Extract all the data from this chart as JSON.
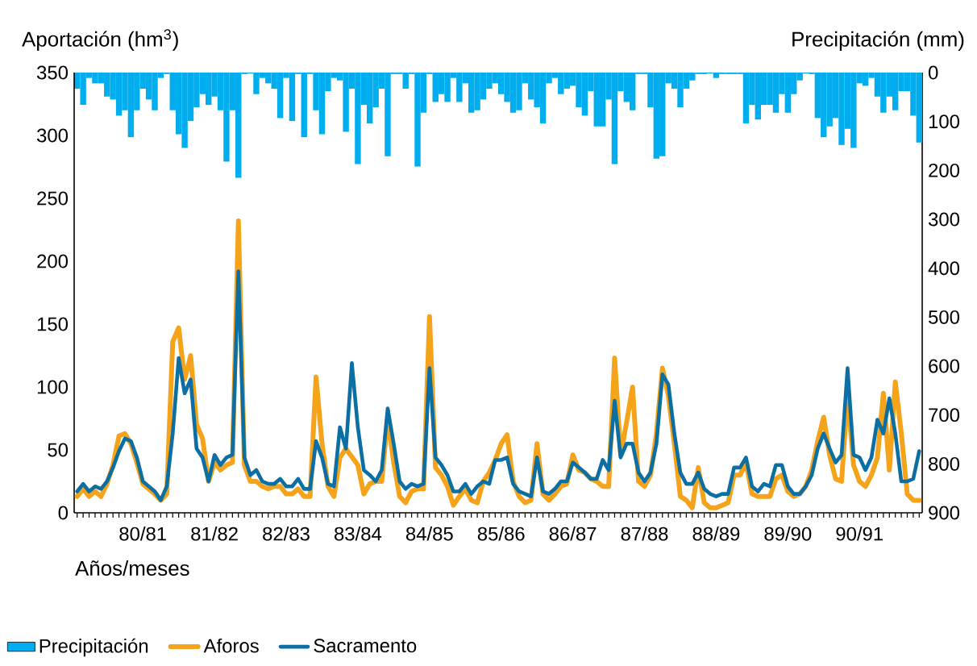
{
  "chart_data": {
    "type": "line",
    "xlabel": "Años/meses",
    "ylabel": "Aportación (hm$^{3}$)",
    "y2label": "Precipitación (mm)",
    "categories": [
      null,
      null,
      null,
      null,
      null,
      null,
      null,
      null,
      null,
      null,
      null,
      "80/81",
      null,
      null,
      null,
      null,
      null,
      null,
      null,
      null,
      null,
      null,
      null,
      "81/82",
      null,
      null,
      null,
      null,
      null,
      null,
      null,
      null,
      null,
      null,
      null,
      "82/83",
      null,
      null,
      null,
      null,
      null,
      null,
      null,
      null,
      null,
      null,
      null,
      "83/84",
      null,
      null,
      null,
      null,
      null,
      null,
      null,
      null,
      null,
      null,
      null,
      "84/85",
      null,
      null,
      null,
      null,
      null,
      null,
      null,
      null,
      null,
      null,
      null,
      "85/86",
      null,
      null,
      null,
      null,
      null,
      null,
      null,
      null,
      null,
      null,
      null,
      "86/87",
      null,
      null,
      null,
      null,
      null,
      null,
      null,
      null,
      null,
      null,
      null,
      "87/88",
      null,
      null,
      null,
      null,
      null,
      null,
      null,
      null,
      null,
      null,
      null,
      "88/89",
      null,
      null,
      null,
      null,
      null,
      null,
      null,
      null,
      null,
      null,
      null,
      "89/90",
      null,
      null,
      null,
      null,
      null,
      null,
      null,
      null,
      null,
      null,
      null,
      "90/91",
      null,
      null,
      null,
      null,
      null,
      null,
      null,
      null,
      null,
      null
    ],
    "series": [
      {
        "name": "Precipitación",
        "type": "bar",
        "axis": "y2",
        "color": "#00adef",
        "values": [
          33,
          66,
          11,
          22,
          22,
          49,
          55,
          88,
          77,
          132,
          77,
          33,
          55,
          77,
          11,
          3,
          77,
          126,
          154,
          99,
          71,
          44,
          66,
          49,
          77,
          182,
          77,
          215,
          3,
          2,
          44,
          11,
          22,
          33,
          93,
          11,
          99,
          3,
          132,
          3,
          77,
          126,
          38,
          11,
          16,
          121,
          33,
          187,
          66,
          104,
          71,
          33,
          171,
          3,
          3,
          33,
          3,
          192,
          82,
          3,
          60,
          44,
          60,
          11,
          60,
          22,
          82,
          77,
          55,
          33,
          22,
          44,
          60,
          82,
          77,
          22,
          55,
          71,
          104,
          22,
          11,
          44,
          33,
          27,
          71,
          88,
          38,
          110,
          110,
          55,
          187,
          38,
          60,
          77,
          3,
          3,
          71,
          176,
          171,
          22,
          33,
          71,
          33,
          16,
          3,
          3,
          2,
          11,
          3,
          3,
          3,
          3,
          104,
          66,
          96,
          66,
          66,
          82,
          44,
          82,
          44,
          16,
          2,
          3,
          93,
          132,
          110,
          93,
          148,
          115,
          154,
          22,
          27,
          11,
          49,
          82,
          49,
          77,
          38,
          38,
          88,
          143
        ]
      },
      {
        "name": "Aforos",
        "color": "#f5a31a",
        "values": [
          13,
          19,
          13,
          17,
          13,
          23,
          38,
          61,
          63,
          55,
          40,
          23,
          19,
          15,
          10,
          15,
          136,
          147,
          106,
          125,
          70,
          59,
          25,
          40,
          34,
          38,
          40,
          232,
          38,
          25,
          25,
          21,
          19,
          21,
          21,
          15,
          15,
          19,
          13,
          13,
          108,
          55,
          21,
          13,
          44,
          51,
          null,
          38,
          15,
          23,
          25,
          25,
          76,
          40,
          13,
          8,
          17,
          19,
          19,
          156,
          36,
          30,
          21,
          6,
          13,
          19,
          10,
          8,
          25,
          32,
          42,
          55,
          62,
          25,
          13,
          8,
          10,
          55,
          15,
          10,
          15,
          21,
          23,
          46,
          34,
          32,
          27,
          25,
          21,
          21,
          123,
          46,
          72,
          100,
          25,
          21,
          30,
          63,
          115,
          93,
          55,
          13,
          10,
          4,
          36,
          8,
          4,
          4,
          6,
          8,
          30,
          30,
          40,
          15,
          13,
          13,
          13,
          27,
          30,
          17,
          13,
          15,
          21,
          34,
          57,
          76,
          46,
          27,
          25,
          95,
          38,
          25,
          21,
          30,
          44,
          95,
          34,
          104,
          63,
          15,
          10,
          10
        ]
      },
      {
        "name": "Sacramento",
        "color": "#0b6fa4",
        "values": [
          17,
          23,
          17,
          21,
          19,
          25,
          36,
          49,
          59,
          57,
          44,
          25,
          21,
          17,
          10,
          21,
          63,
          123,
          95,
          106,
          51,
          44,
          25,
          46,
          38,
          44,
          46,
          192,
          44,
          30,
          34,
          25,
          23,
          23,
          27,
          21,
          21,
          27,
          19,
          19,
          57,
          44,
          23,
          21,
          68,
          51,
          119,
          68,
          34,
          30,
          25,
          34,
          83,
          55,
          25,
          19,
          23,
          21,
          23,
          115,
          44,
          38,
          30,
          17,
          17,
          23,
          15,
          21,
          25,
          23,
          42,
          42,
          44,
          23,
          17,
          15,
          13,
          44,
          17,
          15,
          19,
          25,
          25,
          40,
          36,
          32,
          27,
          27,
          42,
          34,
          89,
          44,
          55,
          55,
          32,
          25,
          32,
          55,
          110,
          102,
          63,
          32,
          23,
          23,
          32,
          19,
          15,
          13,
          15,
          15,
          36,
          36,
          44,
          21,
          17,
          23,
          21,
          38,
          38,
          21,
          15,
          15,
          21,
          30,
          51,
          63,
          51,
          40,
          46,
          115,
          46,
          44,
          34,
          44,
          74,
          63,
          91,
          63,
          25,
          25,
          27,
          49
        ]
      }
    ],
    "ylim": [
      0,
      350
    ],
    "yticks": [
      0,
      50,
      100,
      150,
      200,
      250,
      300,
      350
    ],
    "y2lim": [
      900,
      0
    ],
    "y2ticks": [
      0,
      100,
      200,
      300,
      400,
      500,
      600,
      700,
      800,
      900
    ],
    "legend": "bottom"
  }
}
